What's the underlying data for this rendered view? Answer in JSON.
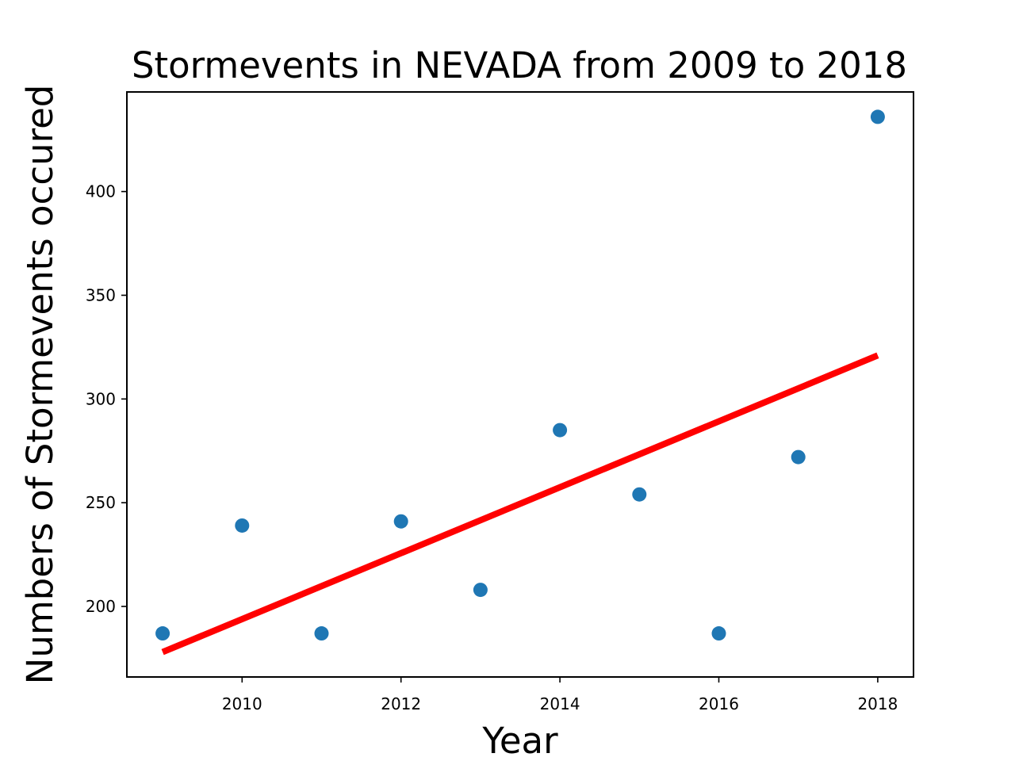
{
  "chart_data": {
    "type": "scatter",
    "title": "Stormevents in NEVADA from 2009 to 2018",
    "xlabel": "Year",
    "ylabel": "Numbers of Stormevents occured",
    "xlim": [
      2008.55,
      2018.45
    ],
    "ylim": [
      166,
      448
    ],
    "xticks": [
      2010,
      2012,
      2014,
      2016,
      2018
    ],
    "yticks": [
      200,
      250,
      300,
      350,
      400
    ],
    "grid": false,
    "series": [
      {
        "type": "scatter",
        "color": "#1f77b4",
        "x": [
          2009,
          2010,
          2011,
          2012,
          2013,
          2014,
          2015,
          2016,
          2017,
          2018
        ],
        "y": [
          187,
          239,
          187,
          241,
          208,
          285,
          254,
          187,
          272,
          436
        ]
      },
      {
        "type": "line",
        "color": "#ff0000",
        "x": [
          2009,
          2018
        ],
        "y": [
          178,
          321
        ]
      }
    ]
  }
}
